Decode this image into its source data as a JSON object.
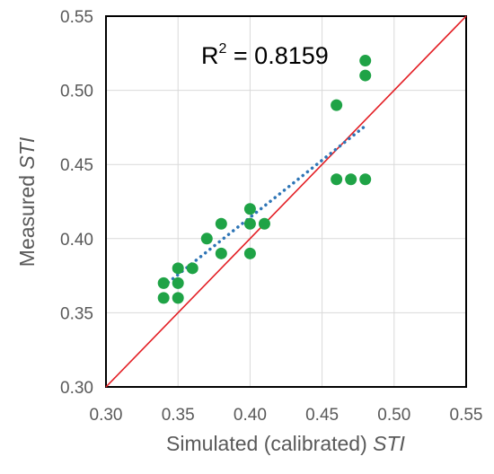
{
  "chart_data": {
    "type": "scatter",
    "xlabel_plain": "Simulated (calibrated) ",
    "xlabel_italic": "STI",
    "ylabel_plain": "Measured ",
    "ylabel_italic": "STI",
    "xlim": [
      0.3,
      0.55
    ],
    "ylim": [
      0.3,
      0.55
    ],
    "xticks": [
      "0.30",
      "0.35",
      "0.40",
      "0.45",
      "0.50",
      "0.55"
    ],
    "yticks": [
      "0.30",
      "0.35",
      "0.40",
      "0.45",
      "0.50",
      "0.55"
    ],
    "grid": true,
    "annotation_base": "R",
    "annotation_sup": "2",
    "annotation_rest": " = 0.8159",
    "point_color": "#1fa346",
    "trend_color": "#2e75b6",
    "identity_color": "#e31e24",
    "points": [
      {
        "x": 0.34,
        "y": 0.37
      },
      {
        "x": 0.34,
        "y": 0.36
      },
      {
        "x": 0.35,
        "y": 0.38
      },
      {
        "x": 0.35,
        "y": 0.37
      },
      {
        "x": 0.35,
        "y": 0.36
      },
      {
        "x": 0.36,
        "y": 0.38
      },
      {
        "x": 0.37,
        "y": 0.4
      },
      {
        "x": 0.38,
        "y": 0.41
      },
      {
        "x": 0.38,
        "y": 0.39
      },
      {
        "x": 0.4,
        "y": 0.42
      },
      {
        "x": 0.4,
        "y": 0.41
      },
      {
        "x": 0.4,
        "y": 0.39
      },
      {
        "x": 0.41,
        "y": 0.41
      },
      {
        "x": 0.46,
        "y": 0.49
      },
      {
        "x": 0.46,
        "y": 0.44
      },
      {
        "x": 0.47,
        "y": 0.44
      },
      {
        "x": 0.48,
        "y": 0.52
      },
      {
        "x": 0.48,
        "y": 0.51
      },
      {
        "x": 0.48,
        "y": 0.44
      }
    ],
    "trendline": {
      "x": [
        0.34,
        0.48
      ],
      "y": [
        0.368,
        0.476
      ]
    },
    "identity_line": {
      "x": [
        0.3,
        0.55
      ],
      "y": [
        0.3,
        0.55
      ]
    }
  }
}
